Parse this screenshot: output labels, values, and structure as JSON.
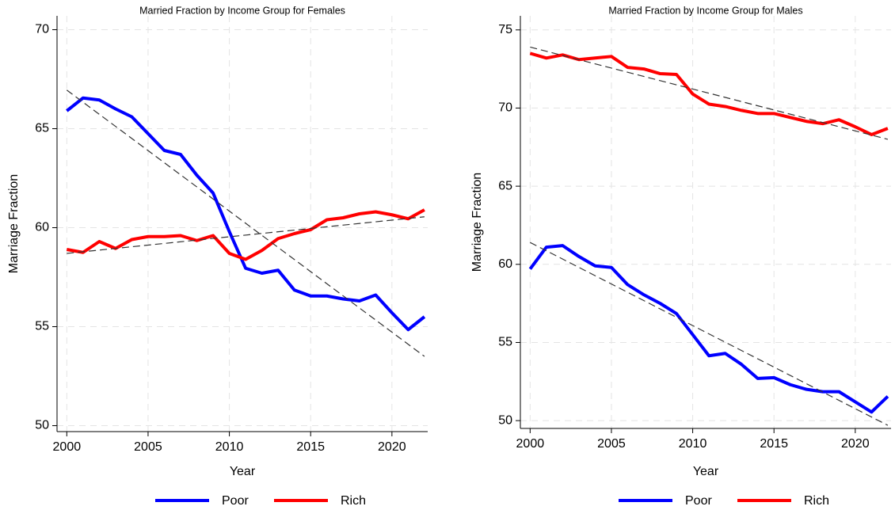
{
  "chart_data": [
    {
      "type": "line",
      "title": "Married Fraction by Income Group for Females",
      "x_label": "Year",
      "y_label": "Marriage Fraction",
      "x": [
        2000,
        2001,
        2002,
        2003,
        2004,
        2005,
        2006,
        2007,
        2008,
        2009,
        2010,
        2011,
        2012,
        2013,
        2014,
        2015,
        2016,
        2017,
        2018,
        2019,
        2020,
        2021,
        2022
      ],
      "series": [
        {
          "name": "Poor",
          "color": "#0000ff",
          "values": [
            65.9,
            66.55,
            66.45,
            66.0,
            65.6,
            64.75,
            63.9,
            63.7,
            62.65,
            61.75,
            59.8,
            57.95,
            57.7,
            57.85,
            56.85,
            56.55,
            56.55,
            56.4,
            56.3,
            56.6,
            55.7,
            54.85,
            55.5
          ]
        },
        {
          "name": "Rich",
          "color": "#ff0000",
          "values": [
            58.9,
            58.75,
            59.3,
            58.95,
            59.4,
            59.55,
            59.55,
            59.6,
            59.35,
            59.6,
            58.7,
            58.4,
            58.85,
            59.45,
            59.7,
            59.9,
            60.4,
            60.5,
            60.7,
            60.8,
            60.65,
            60.45,
            60.9
          ]
        }
      ],
      "trends": [
        {
          "x": [
            2000,
            2022
          ],
          "values": [
            66.95,
            53.5
          ]
        },
        {
          "x": [
            2000,
            2022
          ],
          "values": [
            58.7,
            60.55
          ]
        }
      ],
      "xlim": [
        1999.4,
        2022.2
      ],
      "xticks": [
        2000,
        2005,
        2010,
        2015,
        2020
      ],
      "ylim": [
        49.7,
        70.7
      ],
      "yticks": [
        50,
        55,
        60,
        65,
        70
      ],
      "grid": true
    },
    {
      "type": "line",
      "title": "Married Fraction by Income Group for Males",
      "x_label": "Year",
      "y_label": "Marriage Fraction",
      "x": [
        2000,
        2001,
        2002,
        2003,
        2004,
        2005,
        2006,
        2007,
        2008,
        2009,
        2010,
        2011,
        2012,
        2013,
        2014,
        2015,
        2016,
        2017,
        2018,
        2019,
        2020,
        2021,
        2022
      ],
      "series": [
        {
          "name": "Poor",
          "color": "#0000ff",
          "values": [
            59.7,
            61.1,
            61.2,
            60.5,
            59.9,
            59.8,
            58.7,
            58.05,
            57.5,
            56.85,
            55.5,
            54.15,
            54.3,
            53.6,
            52.7,
            52.75,
            52.3,
            52.0,
            51.85,
            51.85,
            51.2,
            50.55,
            51.55
          ]
        },
        {
          "name": "Rich",
          "color": "#ff0000",
          "values": [
            73.5,
            73.2,
            73.4,
            73.1,
            73.2,
            73.3,
            72.6,
            72.5,
            72.2,
            72.15,
            70.9,
            70.25,
            70.1,
            69.85,
            69.65,
            69.65,
            69.4,
            69.15,
            69.0,
            69.25,
            68.8,
            68.3,
            68.7
          ]
        }
      ],
      "trends": [
        {
          "x": [
            2000,
            2022
          ],
          "values": [
            61.4,
            49.7
          ]
        },
        {
          "x": [
            2000,
            2022
          ],
          "values": [
            73.9,
            68.0
          ]
        }
      ],
      "xlim": [
        1999.4,
        2022.2
      ],
      "xticks": [
        2000,
        2005,
        2010,
        2015,
        2020
      ],
      "ylim": [
        49.5,
        75.9
      ],
      "yticks": [
        50,
        55,
        60,
        65,
        70,
        75
      ],
      "grid": true
    }
  ]
}
